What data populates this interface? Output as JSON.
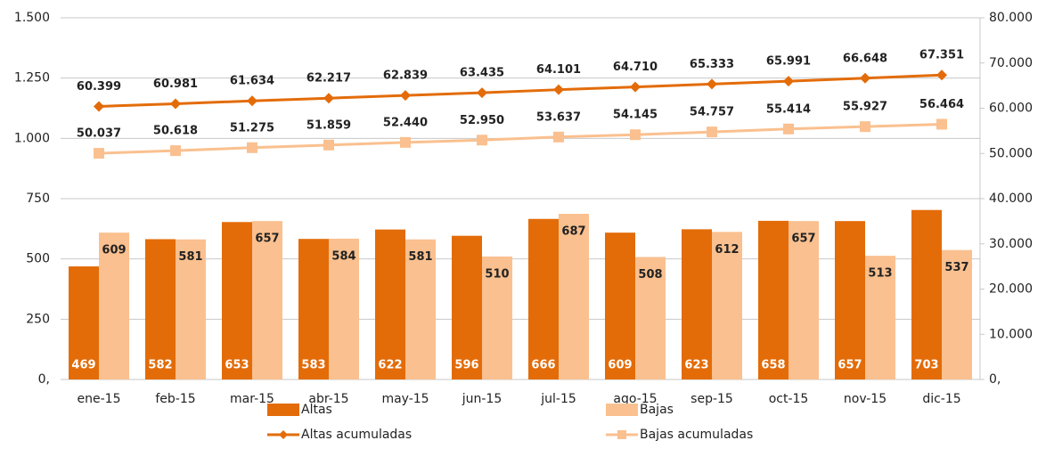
{
  "chart_data": {
    "type": "bar",
    "categories": [
      "ene-15",
      "feb-15",
      "mar-15",
      "abr-15",
      "may-15",
      "jun-15",
      "jul-15",
      "ago-15",
      "sep-15",
      "oct-15",
      "nov-15",
      "dic-15"
    ],
    "series": [
      {
        "name": "Altas",
        "type": "bar",
        "color": "#e36c09",
        "values": [
          469,
          582,
          653,
          583,
          622,
          596,
          666,
          609,
          623,
          658,
          657,
          703
        ]
      },
      {
        "name": "Bajas",
        "type": "bar",
        "color": "#fac08f",
        "values": [
          609,
          581,
          657,
          584,
          581,
          510,
          687,
          508,
          612,
          657,
          513,
          537
        ]
      },
      {
        "name": "Altas acumuladas",
        "type": "line",
        "axis": "y2",
        "marker": "diamond",
        "color": "#e36c09",
        "values": [
          60399,
          60981,
          61634,
          62217,
          62839,
          63435,
          64101,
          64710,
          65333,
          65991,
          66648,
          67351
        ],
        "value_labels": [
          "60.399",
          "60.981",
          "61.634",
          "62.217",
          "62.839",
          "63.435",
          "64.101",
          "64.710",
          "65.333",
          "65.991",
          "66.648",
          "67.351"
        ]
      },
      {
        "name": "Bajas acumuladas",
        "type": "line",
        "axis": "y2",
        "marker": "square",
        "color": "#fac08f",
        "values": [
          50037,
          50618,
          51275,
          51859,
          52440,
          52950,
          53637,
          54145,
          54757,
          55414,
          55927,
          56464
        ],
        "value_labels": [
          "50.037",
          "50.618",
          "51.275",
          "51.859",
          "52.440",
          "52.950",
          "53.637",
          "54.145",
          "54.757",
          "55.414",
          "55.927",
          "56.464"
        ]
      }
    ],
    "ylim": [
      0,
      1500
    ],
    "yticks": [
      {
        "value": 0,
        "label": "0,"
      },
      250,
      500,
      750,
      {
        "value": 1000,
        "label": "1.000"
      },
      {
        "value": 1250,
        "label": "1.250"
      },
      {
        "value": 1500,
        "label": "1.500"
      }
    ],
    "y2lim": [
      0,
      80000
    ],
    "y2ticks": [
      {
        "value": 0,
        "label": "0,"
      },
      {
        "value": 10000,
        "label": "10.000"
      },
      {
        "value": 20000,
        "label": "20.000"
      },
      {
        "value": 30000,
        "label": "30.000"
      },
      {
        "value": 40000,
        "label": "40.000"
      },
      {
        "value": 50000,
        "label": "50.000"
      },
      {
        "value": 60000,
        "label": "60.000"
      },
      {
        "value": 70000,
        "label": "70.000"
      },
      {
        "value": 80000,
        "label": "80.000"
      }
    ],
    "grid": true,
    "legend": "bottom"
  }
}
